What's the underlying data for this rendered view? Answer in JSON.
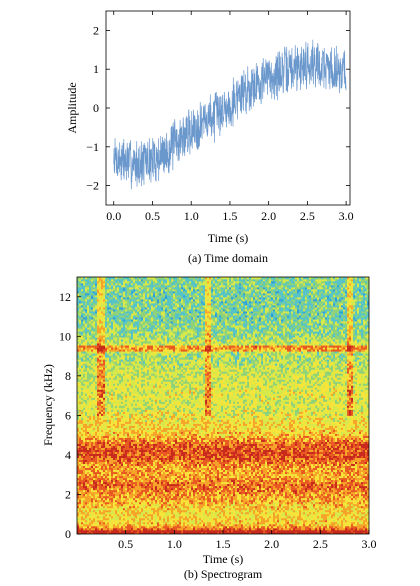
{
  "chart_data": [
    {
      "type": "line",
      "xlabel": "Time (s)",
      "ylabel": "Amplitude",
      "caption": "(a) Time domain",
      "xlim": [
        -0.1,
        3.05
      ],
      "ylim": [
        -2.5,
        2.5
      ],
      "xticks": [
        0.0,
        0.5,
        1.0,
        1.5,
        2.0,
        2.5,
        3.0
      ],
      "xtick_labels": [
        "0.0",
        "0.5",
        "1.0",
        "1.5",
        "2.0",
        "2.5",
        "3.0"
      ],
      "yticks": [
        -2,
        -1,
        0,
        1,
        2
      ],
      "ytick_labels": [
        "−2",
        "−1",
        "0",
        "1",
        "2"
      ],
      "grid": false,
      "line_color": "#6a97cc",
      "series": [
        {
          "x": [
            0.0,
            0.1,
            0.2,
            0.3,
            0.4,
            0.5,
            0.6,
            0.7,
            0.8,
            0.9,
            1.0,
            1.1,
            1.2,
            1.3,
            1.4,
            1.5,
            1.6,
            1.7,
            1.8,
            1.9,
            2.0,
            2.1,
            2.2,
            2.3,
            2.4,
            2.5,
            2.6,
            2.7,
            2.8,
            2.9,
            3.0
          ],
          "values": [
            -1.3,
            -1.35,
            -1.4,
            -1.45,
            -1.4,
            -1.35,
            -1.25,
            -1.1,
            -0.9,
            -0.75,
            -0.6,
            -0.45,
            -0.3,
            -0.2,
            -0.05,
            0.1,
            0.3,
            0.45,
            0.6,
            0.7,
            0.8,
            0.85,
            0.95,
            1.0,
            1.1,
            1.15,
            1.15,
            1.1,
            1.0,
            1.0,
            0.95
          ],
          "noise_amplitude": 0.55
        }
      ]
    },
    {
      "type": "heatmap",
      "xlabel": "Time (s)",
      "ylabel": "Frequency (kHz)",
      "caption": "(b) Spectrogram",
      "xlim": [
        0.0,
        3.0
      ],
      "ylim": [
        0,
        13
      ],
      "xticks": [
        0.5,
        1.0,
        1.5,
        2.0,
        2.5,
        3.0
      ],
      "xtick_labels": [
        "0.5",
        "1.0",
        "1.5",
        "2.0",
        "2.5",
        "3.0"
      ],
      "yticks": [
        0,
        2,
        4,
        6,
        8,
        10,
        12
      ],
      "ytick_labels": [
        "0",
        "2",
        "4",
        "6",
        "8",
        "10",
        "12"
      ],
      "colormap": [
        "#2f9fd8",
        "#55c4c8",
        "#8fd27a",
        "#d7e84a",
        "#f7e43a",
        "#f6a329",
        "#e85a22",
        "#c82a1d"
      ],
      "frequency_profile_khz": [
        0,
        0.5,
        1,
        1.5,
        2,
        2.5,
        3,
        3.5,
        4,
        4.5,
        5,
        5.5,
        6,
        6.5,
        7,
        7.5,
        8,
        8.5,
        9,
        9.5,
        10,
        10.5,
        11,
        11.5,
        12,
        12.5,
        13
      ],
      "intensity_profile": [
        0.98,
        0.6,
        0.55,
        0.62,
        0.72,
        0.78,
        0.66,
        0.72,
        0.86,
        0.82,
        0.62,
        0.56,
        0.5,
        0.45,
        0.48,
        0.46,
        0.44,
        0.4,
        0.36,
        0.46,
        0.34,
        0.3,
        0.26,
        0.28,
        0.26,
        0.28,
        0.3
      ],
      "bright_time_bands_s": [
        0.25,
        1.35,
        2.8
      ],
      "bright_frequency_lines_khz": [
        9.4
      ]
    }
  ]
}
